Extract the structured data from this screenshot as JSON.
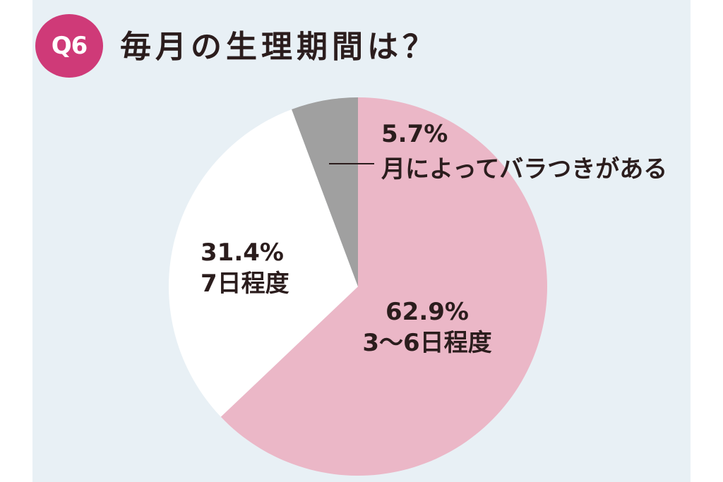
{
  "header": {
    "badge": "Q6",
    "title": "毎月の生理期間は？"
  },
  "colors": {
    "panel_bg": "#e8f0f5",
    "badge": "#cf3a78",
    "text": "#2b1d1d"
  },
  "chart_data": {
    "type": "pie",
    "title": "毎月の生理期間は？",
    "slices": [
      {
        "label": "3～6日程度",
        "value": 62.9,
        "display": "62.9%",
        "color": "#ebb7c7"
      },
      {
        "label": "7日程度",
        "value": 31.4,
        "display": "31.4%",
        "color": "#ffffff"
      },
      {
        "label": "月によってバラつきがある",
        "value": 5.7,
        "display": "5.7%",
        "color": "#a0a0a0"
      }
    ],
    "start": "12 o'clock",
    "direction": "clockwise",
    "legend": "none"
  }
}
